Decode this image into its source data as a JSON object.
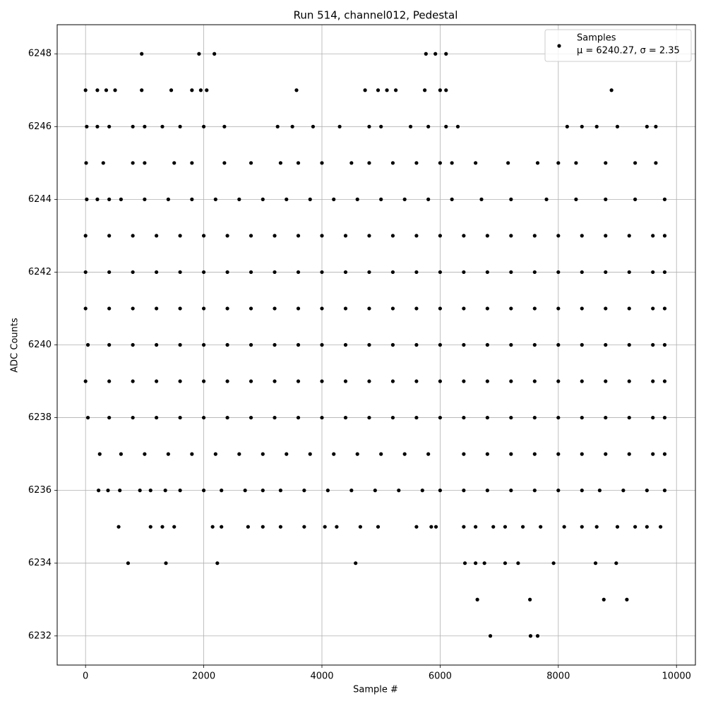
{
  "chart_data": {
    "type": "scatter",
    "title": "Run 514, channel012, Pedestal",
    "x_label": "Sample #",
    "y_label": "ADC Counts",
    "xlim": [
      -480,
      10320
    ],
    "ylim": [
      6231.2,
      6248.8
    ],
    "xticks": [
      0,
      2000,
      4000,
      6000,
      8000,
      10000
    ],
    "yticks": [
      6232,
      6234,
      6236,
      6238,
      6240,
      6242,
      6244,
      6246,
      6248
    ],
    "grid": true,
    "legend": "upper right",
    "series": [
      {
        "name": "Samples",
        "legend_note": "μ = 6240.27, σ = 2.35",
        "color": "#000000",
        "x": [
          950,
          1920,
          2180,
          5760,
          5920,
          6100,
          0,
          200,
          350,
          500,
          950,
          1450,
          1800,
          1950,
          2050,
          3570,
          4730,
          4950,
          5100,
          5250,
          5740,
          6000,
          6100,
          8900,
          20,
          200,
          400,
          800,
          1000,
          1300,
          1600,
          2000,
          2350,
          3250,
          3500,
          3850,
          4300,
          4800,
          5000,
          5500,
          5800,
          6100,
          6300,
          8150,
          8400,
          8650,
          9000,
          9500,
          9650,
          10,
          300,
          800,
          1000,
          1500,
          1800,
          2350,
          2800,
          3300,
          3600,
          4000,
          4500,
          4800,
          5200,
          5600,
          6000,
          6200,
          6600,
          7150,
          7650,
          8000,
          8300,
          8800,
          9300,
          9650,
          20,
          200,
          400,
          600,
          1000,
          1400,
          1800,
          2200,
          2600,
          3000,
          3400,
          3800,
          4200,
          4600,
          5000,
          5400,
          5800,
          6200,
          6700,
          7200,
          7800,
          8300,
          8800,
          9300,
          9800,
          0,
          400,
          800,
          1200,
          1600,
          2000,
          2400,
          2800,
          3200,
          3600,
          4000,
          4400,
          4800,
          5200,
          5600,
          6000,
          6400,
          6800,
          7200,
          7600,
          8000,
          8400,
          8800,
          9200,
          9600,
          9800,
          0,
          400,
          800,
          1200,
          1600,
          2000,
          2400,
          2800,
          3200,
          3600,
          4000,
          4400,
          4800,
          5200,
          5600,
          6000,
          6400,
          6800,
          7200,
          7600,
          8000,
          8400,
          8800,
          9200,
          9600,
          9800,
          0,
          400,
          800,
          1200,
          1600,
          2000,
          2400,
          2800,
          3200,
          3600,
          4000,
          4400,
          4800,
          5200,
          5600,
          6000,
          6400,
          6800,
          7200,
          7600,
          8000,
          8400,
          8800,
          9200,
          9600,
          9800,
          40,
          400,
          800,
          1200,
          1600,
          2000,
          2400,
          2800,
          3200,
          3600,
          4000,
          4400,
          4800,
          5200,
          5600,
          6000,
          6400,
          6800,
          7200,
          7600,
          8000,
          8400,
          8800,
          9200,
          9600,
          9800,
          0,
          400,
          800,
          1200,
          1600,
          2000,
          2400,
          2800,
          3200,
          3600,
          4000,
          4400,
          4800,
          5200,
          5600,
          6000,
          6400,
          6800,
          7200,
          7600,
          8000,
          8400,
          8800,
          9200,
          9600,
          9800,
          40,
          400,
          800,
          1200,
          1600,
          2000,
          2400,
          2800,
          3200,
          3600,
          4000,
          4400,
          4800,
          5200,
          5600,
          6000,
          6400,
          6800,
          7200,
          7600,
          8000,
          8400,
          8800,
          9200,
          9600,
          9800,
          240,
          600,
          1000,
          1400,
          1800,
          2200,
          2600,
          3000,
          3400,
          3800,
          4200,
          4600,
          5000,
          5400,
          5800,
          6400,
          6800,
          7200,
          7600,
          8000,
          8400,
          8800,
          9200,
          9600,
          9800,
          220,
          380,
          580,
          920,
          1100,
          1350,
          1600,
          2000,
          2300,
          2700,
          3000,
          3300,
          3700,
          4100,
          4500,
          4900,
          5300,
          5700,
          6000,
          6400,
          6800,
          7200,
          7600,
          8000,
          8400,
          8700,
          9100,
          9500,
          9800,
          560,
          1100,
          1300,
          1500,
          2150,
          2300,
          2750,
          3000,
          3300,
          3700,
          4050,
          4250,
          4650,
          4950,
          5600,
          5850,
          5930,
          6400,
          6600,
          6900,
          7100,
          7400,
          7700,
          8100,
          8400,
          8650,
          9000,
          9300,
          9500,
          9730,
          720,
          1360,
          2230,
          4570,
          6420,
          6600,
          6750,
          7100,
          7320,
          7920,
          8630,
          8980,
          6630,
          7520,
          8770,
          9160,
          6850,
          7530,
          7650
        ],
        "values": [
          6248,
          6248,
          6248,
          6248,
          6248,
          6248,
          6247,
          6247,
          6247,
          6247,
          6247,
          6247,
          6247,
          6247,
          6247,
          6247,
          6247,
          6247,
          6247,
          6247,
          6247,
          6247,
          6247,
          6247,
          6246,
          6246,
          6246,
          6246,
          6246,
          6246,
          6246,
          6246,
          6246,
          6246,
          6246,
          6246,
          6246,
          6246,
          6246,
          6246,
          6246,
          6246,
          6246,
          6246,
          6246,
          6246,
          6246,
          6246,
          6246,
          6245,
          6245,
          6245,
          6245,
          6245,
          6245,
          6245,
          6245,
          6245,
          6245,
          6245,
          6245,
          6245,
          6245,
          6245,
          6245,
          6245,
          6245,
          6245,
          6245,
          6245,
          6245,
          6245,
          6245,
          6245,
          6244,
          6244,
          6244,
          6244,
          6244,
          6244,
          6244,
          6244,
          6244,
          6244,
          6244,
          6244,
          6244,
          6244,
          6244,
          6244,
          6244,
          6244,
          6244,
          6244,
          6244,
          6244,
          6244,
          6244,
          6244,
          6243,
          6243,
          6243,
          6243,
          6243,
          6243,
          6243,
          6243,
          6243,
          6243,
          6243,
          6243,
          6243,
          6243,
          6243,
          6243,
          6243,
          6243,
          6243,
          6243,
          6243,
          6243,
          6243,
          6243,
          6243,
          6243,
          6242,
          6242,
          6242,
          6242,
          6242,
          6242,
          6242,
          6242,
          6242,
          6242,
          6242,
          6242,
          6242,
          6242,
          6242,
          6242,
          6242,
          6242,
          6242,
          6242,
          6242,
          6242,
          6242,
          6242,
          6242,
          6242,
          6241,
          6241,
          6241,
          6241,
          6241,
          6241,
          6241,
          6241,
          6241,
          6241,
          6241,
          6241,
          6241,
          6241,
          6241,
          6241,
          6241,
          6241,
          6241,
          6241,
          6241,
          6241,
          6241,
          6241,
          6241,
          6241,
          6240,
          6240,
          6240,
          6240,
          6240,
          6240,
          6240,
          6240,
          6240,
          6240,
          6240,
          6240,
          6240,
          6240,
          6240,
          6240,
          6240,
          6240,
          6240,
          6240,
          6240,
          6240,
          6240,
          6240,
          6240,
          6240,
          6239,
          6239,
          6239,
          6239,
          6239,
          6239,
          6239,
          6239,
          6239,
          6239,
          6239,
          6239,
          6239,
          6239,
          6239,
          6239,
          6239,
          6239,
          6239,
          6239,
          6239,
          6239,
          6239,
          6239,
          6239,
          6239,
          6238,
          6238,
          6238,
          6238,
          6238,
          6238,
          6238,
          6238,
          6238,
          6238,
          6238,
          6238,
          6238,
          6238,
          6238,
          6238,
          6238,
          6238,
          6238,
          6238,
          6238,
          6238,
          6238,
          6238,
          6238,
          6238,
          6237,
          6237,
          6237,
          6237,
          6237,
          6237,
          6237,
          6237,
          6237,
          6237,
          6237,
          6237,
          6237,
          6237,
          6237,
          6237,
          6237,
          6237,
          6237,
          6237,
          6237,
          6237,
          6237,
          6237,
          6237,
          6236,
          6236,
          6236,
          6236,
          6236,
          6236,
          6236,
          6236,
          6236,
          6236,
          6236,
          6236,
          6236,
          6236,
          6236,
          6236,
          6236,
          6236,
          6236,
          6236,
          6236,
          6236,
          6236,
          6236,
          6236,
          6236,
          6236,
          6236,
          6236,
          6235,
          6235,
          6235,
          6235,
          6235,
          6235,
          6235,
          6235,
          6235,
          6235,
          6235,
          6235,
          6235,
          6235,
          6235,
          6235,
          6235,
          6235,
          6235,
          6235,
          6235,
          6235,
          6235,
          6235,
          6235,
          6235,
          6235,
          6235,
          6235,
          6235,
          6234,
          6234,
          6234,
          6234,
          6234,
          6234,
          6234,
          6234,
          6234,
          6234,
          6234,
          6234,
          6233,
          6233,
          6233,
          6233,
          6232,
          6232,
          6232
        ]
      }
    ]
  }
}
